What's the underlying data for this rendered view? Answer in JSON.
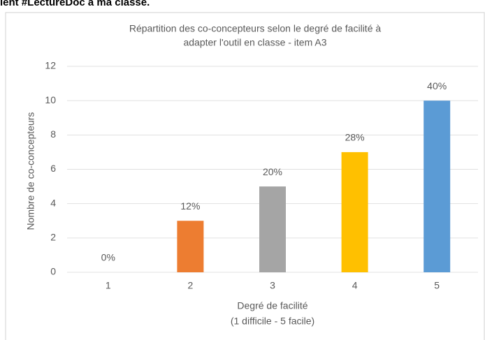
{
  "caption": "lent #LectureDoc à ma classe.",
  "chart_data": {
    "type": "bar",
    "title": [
      "Répartition des co-concepteurs selon le degré de facilité à",
      "adapter l'outil en classe - item A3"
    ],
    "categories": [
      "1",
      "2",
      "3",
      "4",
      "5"
    ],
    "values": [
      0,
      3,
      5,
      7,
      10
    ],
    "percent_labels": [
      "0%",
      "12%",
      "20%",
      "28%",
      "40%"
    ],
    "colors": [
      "#5b9bd5",
      "#ed7d31",
      "#a5a5a5",
      "#ffc000",
      "#5b9bd5"
    ],
    "x_label": [
      "Degré de facilité",
      "(1 difficile - 5 facile)"
    ],
    "y_label": "Nombre de co-concepteurs",
    "ylim": [
      0,
      12
    ],
    "yticks": [
      0,
      2,
      4,
      6,
      8,
      10,
      12
    ],
    "grid": true
  }
}
